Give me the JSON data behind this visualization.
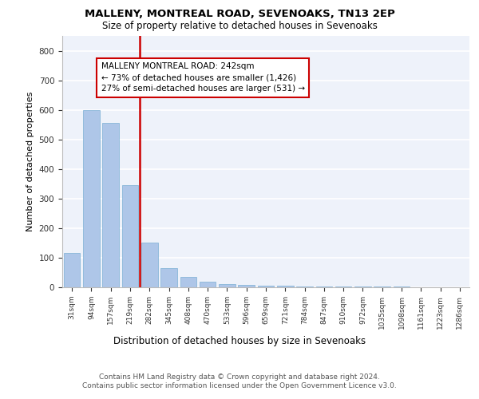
{
  "title1": "MALLENY, MONTREAL ROAD, SEVENOAKS, TN13 2EP",
  "title2": "Size of property relative to detached houses in Sevenoaks",
  "xlabel": "Distribution of detached houses by size in Sevenoaks",
  "ylabel": "Number of detached properties",
  "categories": [
    "31sqm",
    "94sqm",
    "157sqm",
    "219sqm",
    "282sqm",
    "345sqm",
    "408sqm",
    "470sqm",
    "533sqm",
    "596sqm",
    "659sqm",
    "721sqm",
    "784sqm",
    "847sqm",
    "910sqm",
    "972sqm",
    "1035sqm",
    "1098sqm",
    "1161sqm",
    "1223sqm",
    "1286sqm"
  ],
  "values": [
    115,
    600,
    555,
    345,
    150,
    65,
    35,
    18,
    10,
    8,
    6,
    5,
    4,
    4,
    3,
    3,
    2,
    2,
    1,
    1,
    1
  ],
  "bar_color": "#aec6e8",
  "bar_edge_color": "#7bafd4",
  "property_line_x": 3.5,
  "annotation_text": "MALLENY MONTREAL ROAD: 242sqm\n← 73% of detached houses are smaller (1,426)\n27% of semi-detached houses are larger (531) →",
  "annotation_box_color": "#cc0000",
  "footer": "Contains HM Land Registry data © Crown copyright and database right 2024.\nContains public sector information licensed under the Open Government Licence v3.0.",
  "ylim": [
    0,
    850
  ],
  "yticks": [
    0,
    100,
    200,
    300,
    400,
    500,
    600,
    700,
    800
  ],
  "background_color": "#eef2fa",
  "grid_color": "#ffffff"
}
